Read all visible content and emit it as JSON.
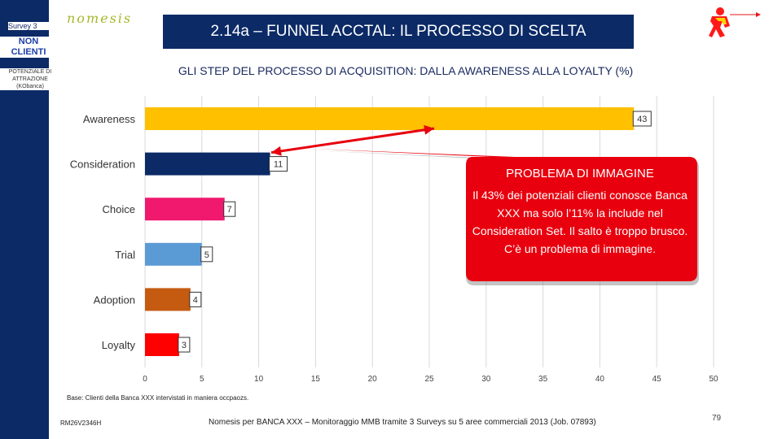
{
  "header": {
    "survey": "Survey 3",
    "segment": "NON CLIENTI",
    "segment_sub": "POTENZIALE DI ATTRAZIONE (KObanca)",
    "logo": "nomesis",
    "title": "2.14a – FUNNEL ACCTAL: IL PROCESSO DI SCELTA",
    "subtitle": "GLI STEP DEL PROCESSO DI ACQUISITION: DALLA AWARENESS ALLA LOYALTY (%)"
  },
  "chart_data": {
    "type": "bar",
    "orientation": "horizontal",
    "title": "GLI STEP DEL PROCESSO DI ACQUISITION: DALLA AWARENESS ALLA LOYALTY (%)",
    "categories": [
      "Awareness",
      "Consideration",
      "Choice",
      "Trial",
      "Adoption",
      "Loyalty"
    ],
    "values": [
      43,
      11,
      7,
      5,
      4,
      3
    ],
    "bar_colors": [
      "#ffc000",
      "#0b2a66",
      "#f0196e",
      "#5b9bd5",
      "#c55a11",
      "#ff0000"
    ],
    "xlim": [
      0,
      50
    ],
    "xticks": [
      0,
      5,
      10,
      15,
      20,
      25,
      30,
      35,
      40,
      45,
      50
    ],
    "xlabel": "",
    "ylabel": "",
    "grid": true
  },
  "callout": {
    "title": "PROBLEMA DI IMMAGINE",
    "text": "Il 43% dei potenziali clienti conosce Banca XXX ma solo l’11% la include nel Consideration Set. Il salto è troppo brusco. C’è un problema di immagine.",
    "color": "#e8000e"
  },
  "footer": {
    "source": "Base: Clienti della Banca XXX intervistati in maniera occpaozs.",
    "code": "RM26V2346H",
    "note": "Nomesis per BANCA XXX – Monitoraggio MMB tramite 3 Surveys su 5 aree commerciali 2013 (Job. 07893)",
    "page": "79"
  }
}
